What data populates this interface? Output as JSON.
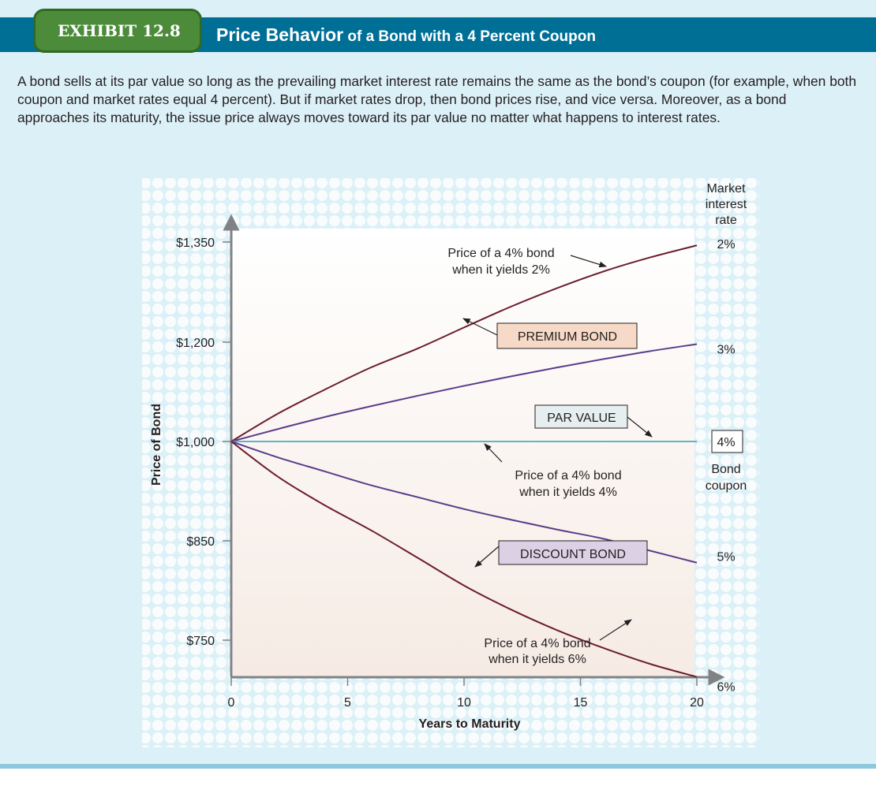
{
  "exhibit": {
    "number": "EXHIBIT 12.8",
    "title_main": "Price Behavior",
    "title_rest": " of a Bond with a 4 Percent Coupon"
  },
  "description": "A bond sells at its par value so long as the prevailing market interest rate remains the same as the bond’s coupon (for example, when both coupon and market rates equal 4 percent). But if market rates drop, then bond prices rise, and vice versa. Moreover, as a bond approaches its maturity, the issue price always moves toward its par value no matter what happens to interest rates.",
  "colors": {
    "premium_curve": "#6b1e2e",
    "rate_curve": "#5a3d8a",
    "par_line": "#4ea8c2",
    "premium_box": "#f6d9c6",
    "par_box": "#e6eef0",
    "discount_box": "#dcd0e4"
  },
  "chart_data": {
    "type": "line",
    "xlabel": "Years to Maturity",
    "ylabel": "Price of Bond",
    "x_ticks": [
      0,
      5,
      10,
      15,
      20
    ],
    "y_ticks": [
      {
        "value": 1350,
        "label": "$1,350"
      },
      {
        "value": 1200,
        "label": "$1,200"
      },
      {
        "value": 1000,
        "label": "$1,000"
      },
      {
        "value": 850,
        "label": "$850"
      },
      {
        "value": 750,
        "label": "$750"
      }
    ],
    "x": [
      0,
      2,
      4,
      6,
      8,
      10,
      12,
      14,
      16,
      18,
      20
    ],
    "series": [
      {
        "name": "2%",
        "style": "premium",
        "values": [
          1000,
          1056,
          1104,
          1149,
          1187,
          1222,
          1253,
          1281,
          1306,
          1327,
          1345
        ]
      },
      {
        "name": "3%",
        "style": "rate",
        "values": [
          1000,
          1025,
          1049,
          1071,
          1092,
          1112,
          1131,
          1149,
          1166,
          1182,
          1196
        ]
      },
      {
        "name": "4%",
        "style": "par",
        "values": [
          1000,
          1000,
          1000,
          1000,
          1000,
          1000,
          1000,
          1000,
          1000,
          1000,
          1000
        ]
      },
      {
        "name": "5%",
        "style": "rate",
        "values": [
          1000,
          976,
          955,
          934,
          916,
          898,
          882,
          867,
          853,
          840,
          828
        ]
      },
      {
        "name": "6%",
        "style": "premium",
        "values": [
          1000,
          947,
          904,
          866,
          833,
          805,
          781,
          760,
          742,
          726,
          713
        ]
      }
    ],
    "market_rate_header": [
      "Market",
      "interest",
      "rate"
    ],
    "bond_coupon_label": [
      "Bond",
      "coupon"
    ],
    "annotations": {
      "premium_bond": "PREMIUM BOND",
      "par_value": "PAR VALUE",
      "discount_bond": "DISCOUNT BOND",
      "yield2": [
        "Price of a 4% bond",
        "when it yields 2%"
      ],
      "yield4": [
        "Price of a 4% bond",
        "when it yields 4%"
      ],
      "yield6": [
        "Price of a 4% bond",
        "when it yields 6%"
      ]
    }
  }
}
